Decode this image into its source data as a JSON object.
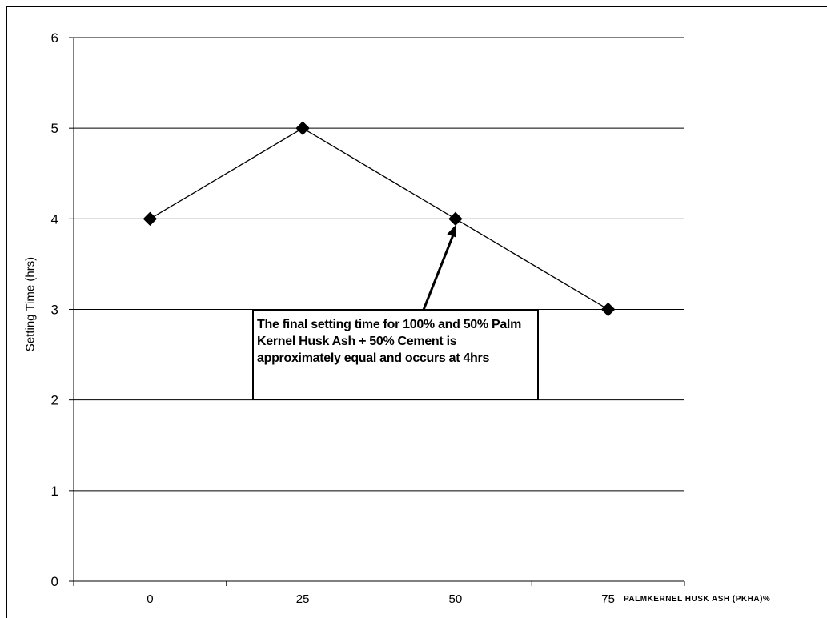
{
  "chart_data": {
    "type": "line",
    "categories": [
      "0",
      "25",
      "50",
      "75"
    ],
    "series": [
      {
        "values": [
          4,
          5,
          4,
          3
        ]
      }
    ],
    "xlabel": "PALMKERNEL HUSK ASH (PKHA)%",
    "ylabel": "Setting Time (hrs)",
    "ylim": [
      0,
      6
    ],
    "yticks": [
      0,
      1,
      2,
      3,
      4,
      5,
      6
    ],
    "grid": "horizontal",
    "marker": "diamond",
    "colors": {
      "line": "#000000",
      "grid": "#000000",
      "background": "#ffffff"
    },
    "annotation": {
      "text": "The final setting time for 100% and 50% Palm Kernel Husk Ash + 50% Cement is approximately equal and occurs at 4hrs",
      "points_to": {
        "category": "50",
        "value": 4
      }
    }
  }
}
